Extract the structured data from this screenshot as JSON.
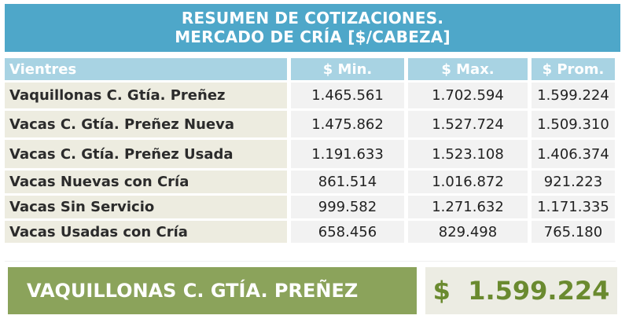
{
  "title": {
    "line1": "RESUMEN DE COTIZACIONES.",
    "line2": "MERCADO DE CRÍA [$/CABEZA]"
  },
  "table": {
    "headers": [
      "Vientres",
      "$ Min.",
      "$ Max.",
      "$ Prom."
    ],
    "rows": [
      {
        "label": "Vaquillonas C. Gtía. Preñez",
        "min": "1.465.561",
        "max": "1.702.594",
        "prom": "1.599.224"
      },
      {
        "label": "Vacas C. Gtía. Preñez Nueva",
        "min": "1.475.862",
        "max": "1.527.724",
        "prom": "1.509.310"
      },
      {
        "label": "Vacas C. Gtía. Preñez Usada",
        "min": "1.191.633",
        "max": "1.523.108",
        "prom": "1.406.374"
      },
      {
        "label": "Vacas Nuevas con Cría",
        "min": "861.514",
        "max": "1.016.872",
        "prom": "921.223"
      },
      {
        "label": "Vacas Sin Servicio",
        "min": "999.582",
        "max": "1.271.632",
        "prom": "1.171.335"
      },
      {
        "label": "Vacas Usadas con Cría",
        "min": "658.456",
        "max": "829.498",
        "prom": "765.180"
      }
    ]
  },
  "highlight": {
    "label": "VAQUILLONAS C. GTÍA. PREÑEZ",
    "value": "$  1.599.224"
  },
  "colors": {
    "title_bg": "#4ea7c9",
    "header_bg": "#a8d3e3",
    "label_bg": "#edece0",
    "value_bg": "#f2f2f2",
    "banner_green": "#8ba35b",
    "banner_value_text": "#6a8a2f"
  }
}
